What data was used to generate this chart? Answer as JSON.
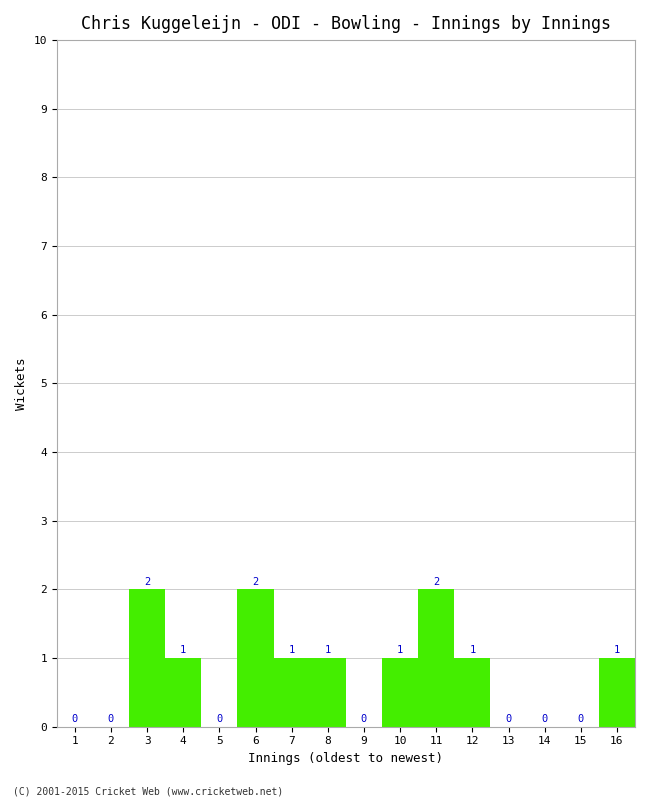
{
  "title": "Chris Kuggeleijn - ODI - Bowling - Innings by Innings",
  "xlabel": "Innings (oldest to newest)",
  "ylabel": "Wickets",
  "innings": [
    1,
    2,
    3,
    4,
    5,
    6,
    7,
    8,
    9,
    10,
    11,
    12,
    13,
    14,
    15,
    16
  ],
  "wickets": [
    0,
    0,
    2,
    1,
    0,
    2,
    1,
    1,
    0,
    1,
    2,
    1,
    0,
    0,
    0,
    1
  ],
  "bar_color": "#44ee00",
  "bar_edge_color": "#44ee00",
  "label_color": "#0000cc",
  "ylim": [
    0,
    10
  ],
  "yticks": [
    0,
    1,
    2,
    3,
    4,
    5,
    6,
    7,
    8,
    9,
    10
  ],
  "background_color": "#ffffff",
  "grid_color": "#cccccc",
  "title_fontsize": 12,
  "axis_label_fontsize": 9,
  "tick_fontsize": 8,
  "annotation_fontsize": 7.5,
  "footer": "(C) 2001-2015 Cricket Web (www.cricketweb.net)",
  "footer_fontsize": 7
}
